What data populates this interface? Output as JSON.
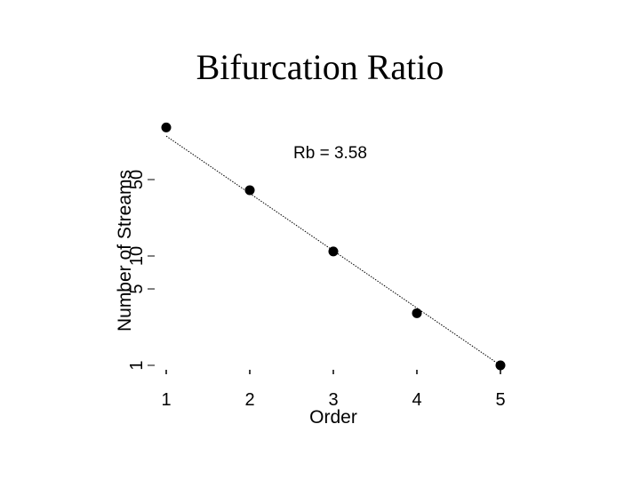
{
  "slide": {
    "title": "Bifurcation Ratio"
  },
  "chart_data": {
    "type": "scatter",
    "xlabel": "Order",
    "ylabel": "Number of Streams",
    "x_ticks": [
      1,
      2,
      3,
      4,
      5
    ],
    "y_ticks": [
      1,
      5,
      10,
      50
    ],
    "y_scale": "log",
    "xlim": [
      1,
      5
    ],
    "ylim": [
      1,
      200
    ],
    "x": [
      1,
      2,
      3,
      4,
      5
    ],
    "y": [
      150,
      40,
      11,
      3,
      1
    ],
    "trend_line": {
      "style": "dotted",
      "from": [
        1,
        125
      ],
      "to": [
        5,
        1
      ]
    },
    "annotation": "Rb = 3.58",
    "grid": false,
    "legend": "none"
  }
}
